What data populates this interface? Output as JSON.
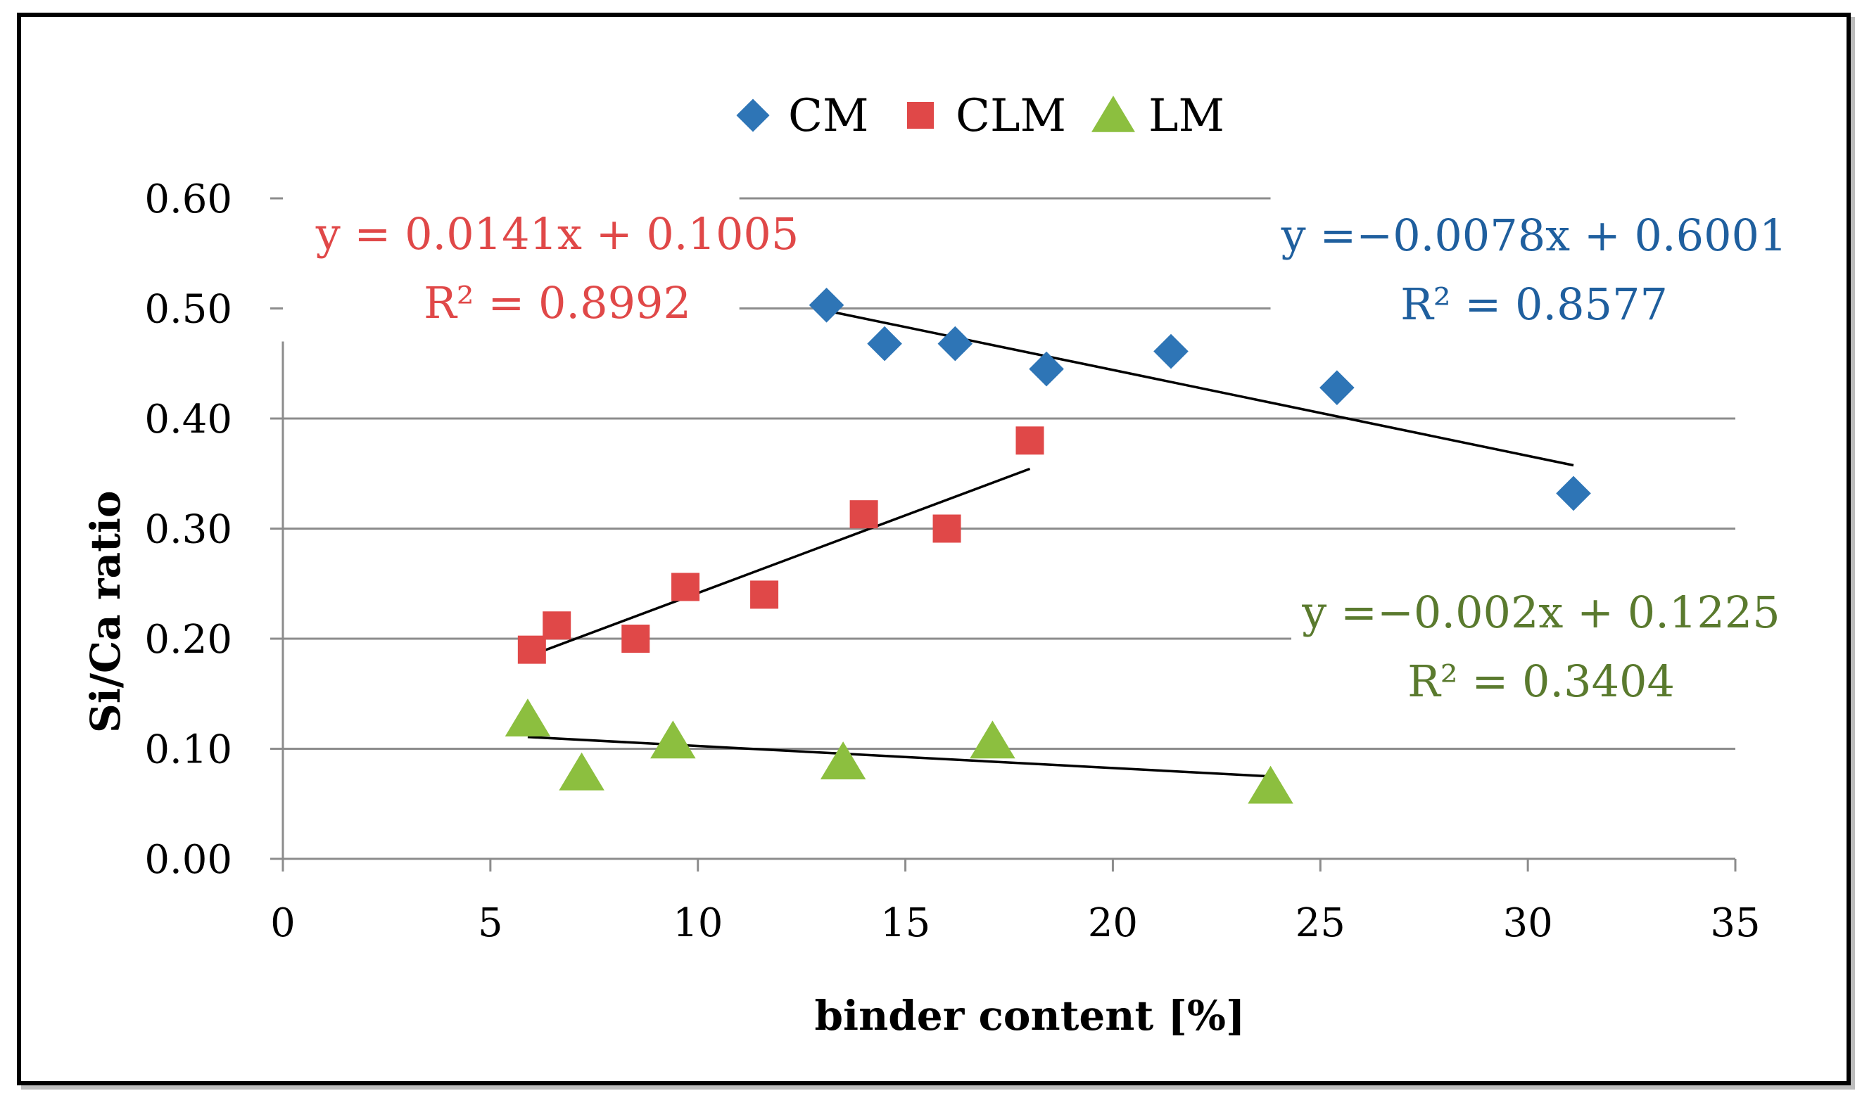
{
  "chart_data": {
    "type": "scatter",
    "title": "",
    "xlabel": "binder content [%]",
    "ylabel": "Si/Ca ratio",
    "xlim": [
      0,
      35
    ],
    "ylim": [
      0,
      0.6
    ],
    "x_ticks": [
      "0",
      "5",
      "10",
      "15",
      "20",
      "25",
      "30",
      "35"
    ],
    "y_ticks": [
      "0.00",
      "0.10",
      "0.20",
      "0.30",
      "0.40",
      "0.50",
      "0.60"
    ],
    "grid": true,
    "legend_position": "top-center",
    "series": [
      {
        "name": "CM",
        "marker": "diamond",
        "color": "#2e75b6",
        "points": [
          [
            13.1,
            0.503
          ],
          [
            14.5,
            0.468
          ],
          [
            16.2,
            0.468
          ],
          [
            18.4,
            0.445
          ],
          [
            21.4,
            0.461
          ],
          [
            25.4,
            0.428
          ],
          [
            31.1,
            0.332
          ]
        ],
        "trendline": {
          "slope": -0.0078,
          "intercept": 0.6001,
          "x_range": [
            13.1,
            31.1
          ]
        },
        "equation": "y =−0.0078x + 0.6001",
        "r2": "R² = 0.8577",
        "label_color": "#1f5f9e"
      },
      {
        "name": "CLM",
        "marker": "square",
        "color": "#e04848",
        "points": [
          [
            6.0,
            0.19
          ],
          [
            6.6,
            0.212
          ],
          [
            8.5,
            0.2
          ],
          [
            9.7,
            0.247
          ],
          [
            11.6,
            0.24
          ],
          [
            14.0,
            0.313
          ],
          [
            16.0,
            0.3
          ],
          [
            18.0,
            0.38
          ]
        ],
        "trendline": {
          "slope": 0.0141,
          "intercept": 0.1005,
          "x_range": [
            6.0,
            18.0
          ]
        },
        "equation": "y = 0.0141x + 0.1005",
        "r2": "R² = 0.8992",
        "label_color": "#e04848"
      },
      {
        "name": "LM",
        "marker": "triangle",
        "color": "#8cbf3f",
        "points": [
          [
            5.9,
            0.127
          ],
          [
            7.2,
            0.078
          ],
          [
            9.4,
            0.107
          ],
          [
            13.5,
            0.088
          ],
          [
            17.1,
            0.107
          ],
          [
            23.8,
            0.066
          ]
        ],
        "trendline": {
          "slope": -0.002,
          "intercept": 0.1225,
          "x_range": [
            5.9,
            23.8
          ]
        },
        "equation": "y =−0.002x + 0.1225",
        "r2": "R² = 0.3404",
        "label_color": "#5a7a2e"
      }
    ]
  }
}
